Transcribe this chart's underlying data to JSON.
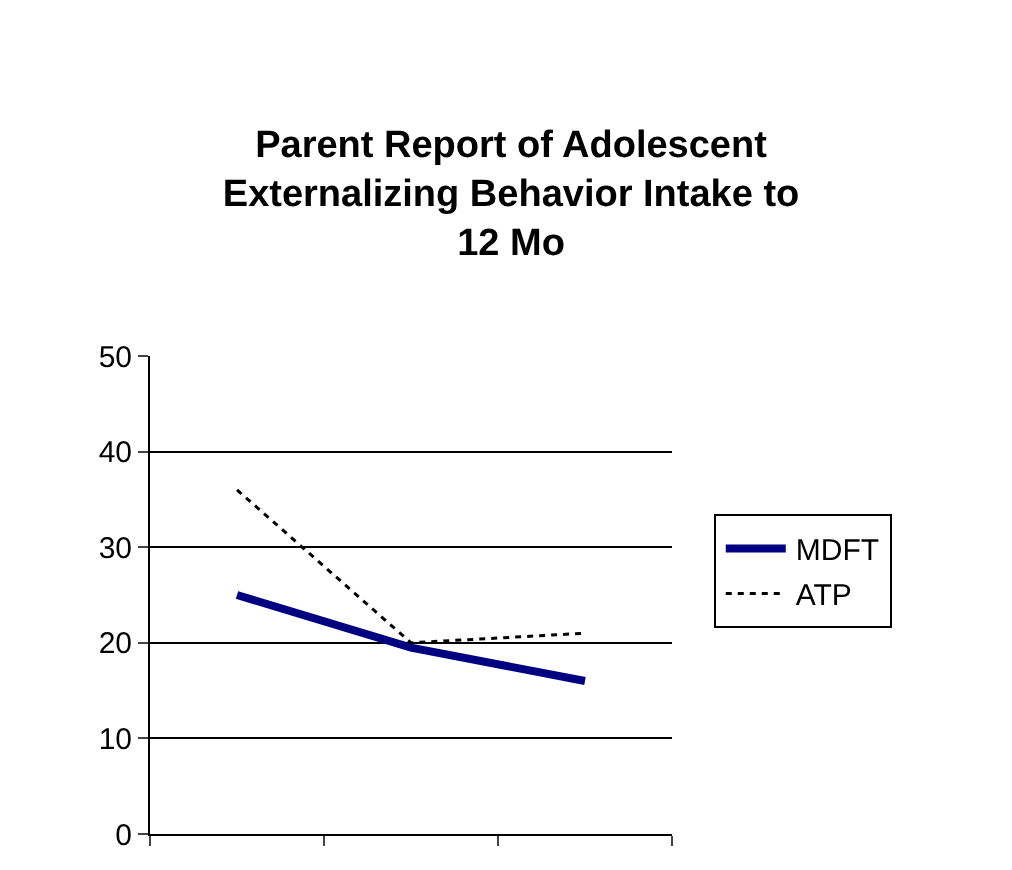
{
  "chart_data": {
    "type": "line",
    "title": "Parent Report of Adolescent Externalizing Behavior Intake to 12 Mo",
    "categories": [
      null,
      null,
      null
    ],
    "series": [
      {
        "name": "MDFT",
        "color": "#000080",
        "values": [
          25,
          19.5,
          16
        ],
        "line_style": "solid"
      },
      {
        "name": "ATP",
        "color": "#000000",
        "values": [
          36,
          20,
          21
        ],
        "line_style": "dotted"
      }
    ],
    "ylim": [
      0,
      50
    ],
    "yticks": [
      0,
      10,
      20,
      30,
      40,
      50
    ],
    "grid": "y",
    "legend": "right",
    "marker": "none"
  }
}
